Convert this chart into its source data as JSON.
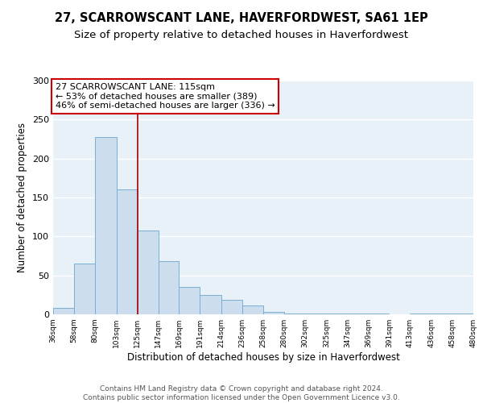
{
  "title": "27, SCARROWSCANT LANE, HAVERFORDWEST, SA61 1EP",
  "subtitle": "Size of property relative to detached houses in Haverfordwest",
  "xlabel": "Distribution of detached houses by size in Haverfordwest",
  "ylabel": "Number of detached properties",
  "bar_color": "#ccdded",
  "bar_edge_color": "#7ab0d4",
  "background_color": "#e8f0f8",
  "grid_color": "#ffffff",
  "bin_edges": [
    36,
    58,
    80,
    103,
    125,
    147,
    169,
    191,
    214,
    236,
    258,
    280,
    302,
    325,
    347,
    369,
    391,
    413,
    436,
    458,
    480
  ],
  "bin_labels": [
    "36sqm",
    "58sqm",
    "80sqm",
    "103sqm",
    "125sqm",
    "147sqm",
    "169sqm",
    "191sqm",
    "214sqm",
    "236sqm",
    "258sqm",
    "280sqm",
    "302sqm",
    "325sqm",
    "347sqm",
    "369sqm",
    "391sqm",
    "413sqm",
    "436sqm",
    "458sqm",
    "480sqm"
  ],
  "bar_heights": [
    8,
    65,
    228,
    160,
    108,
    68,
    35,
    25,
    19,
    11,
    3,
    1,
    1,
    1,
    1,
    1,
    0,
    1,
    1,
    1
  ],
  "vline_x": 125,
  "vline_color": "#aa0000",
  "annotation_text": "27 SCARROWSCANT LANE: 115sqm\n← 53% of detached houses are smaller (389)\n46% of semi-detached houses are larger (336) →",
  "annotation_box_color": "#ffffff",
  "annotation_box_edge_color": "#cc0000",
  "ylim": [
    0,
    300
  ],
  "yticks": [
    0,
    50,
    100,
    150,
    200,
    250,
    300
  ],
  "footer_text": "Contains HM Land Registry data © Crown copyright and database right 2024.\nContains public sector information licensed under the Open Government Licence v3.0.",
  "title_fontsize": 10.5,
  "subtitle_fontsize": 9.5,
  "annotation_fontsize": 8,
  "footer_fontsize": 6.5,
  "ylabel_fontsize": 8.5,
  "xlabel_fontsize": 8.5
}
